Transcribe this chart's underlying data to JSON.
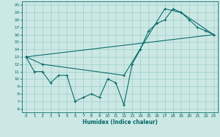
{
  "title": "",
  "xlabel": "Humidex (Indice chaleur)",
  "background_color": "#cce8e4",
  "grid_color": "#99ccc8",
  "line_color": "#006666",
  "xlim": [
    -0.5,
    23.5
  ],
  "ylim": [
    5.5,
    20.5
  ],
  "yticks": [
    6,
    7,
    8,
    9,
    10,
    11,
    12,
    13,
    14,
    15,
    16,
    17,
    18,
    19,
    20
  ],
  "xticks": [
    0,
    1,
    2,
    3,
    4,
    5,
    6,
    7,
    8,
    9,
    10,
    11,
    12,
    13,
    14,
    15,
    16,
    17,
    18,
    19,
    20,
    21,
    22,
    23
  ],
  "series": [
    {
      "x": [
        0,
        1,
        2,
        3,
        4,
        5,
        6,
        7,
        8,
        9,
        10,
        11,
        12,
        13,
        14,
        15,
        16,
        17,
        18,
        19,
        20,
        21,
        22,
        23
      ],
      "y": [
        13,
        11,
        11,
        9.5,
        10.5,
        10.5,
        7,
        7.5,
        8,
        7.5,
        10,
        9.5,
        6.5,
        12,
        14,
        16.5,
        17.5,
        18,
        19.5,
        19,
        18,
        17,
        16.5,
        16
      ]
    },
    {
      "x": [
        0,
        2,
        12,
        17,
        19,
        23
      ],
      "y": [
        13,
        12,
        10.5,
        19.5,
        19,
        16
      ]
    },
    {
      "x": [
        0,
        23
      ],
      "y": [
        13,
        16
      ]
    }
  ]
}
